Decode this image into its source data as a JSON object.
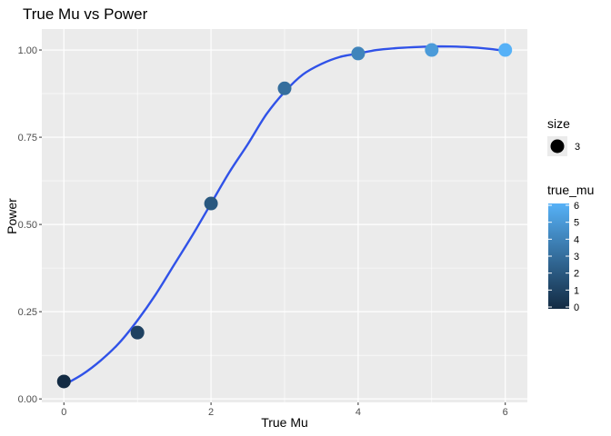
{
  "chart_data": {
    "type": "scatter",
    "title": "True Mu vs Power",
    "xlabel": "True Mu",
    "ylabel": "Power",
    "xlim": [
      -0.3,
      6.3
    ],
    "ylim": [
      -0.01,
      1.06
    ],
    "x_ticks": [
      0,
      2,
      4,
      6
    ],
    "x_tick_labels": [
      "0",
      "2",
      "4",
      "6"
    ],
    "y_ticks": [
      0,
      0.25,
      0.5,
      0.75,
      1.0
    ],
    "y_tick_labels": [
      "0.00",
      "0.25",
      "0.50",
      "0.75",
      "1.00"
    ],
    "grid": true,
    "points": [
      {
        "x": 0,
        "y": 0.05
      },
      {
        "x": 1,
        "y": 0.19
      },
      {
        "x": 2,
        "y": 0.56
      },
      {
        "x": 3,
        "y": 0.89
      },
      {
        "x": 4,
        "y": 0.99
      },
      {
        "x": 5,
        "y": 1.0
      },
      {
        "x": 6,
        "y": 1.0
      }
    ],
    "smooth": {
      "color": "#3052e8",
      "x": [
        0,
        0.25,
        0.5,
        0.75,
        1,
        1.25,
        1.5,
        1.75,
        2,
        2.25,
        2.5,
        2.75,
        3,
        3.25,
        3.5,
        3.75,
        4,
        4.25,
        4.5,
        4.75,
        5,
        5.25,
        5.5,
        5.75,
        6
      ],
      "y": [
        0.04,
        0.07,
        0.11,
        0.16,
        0.225,
        0.3,
        0.385,
        0.47,
        0.56,
        0.65,
        0.73,
        0.815,
        0.88,
        0.93,
        0.96,
        0.98,
        0.99,
        1.0,
        1.005,
        1.008,
        1.01,
        1.01,
        1.008,
        1.004,
        0.998
      ]
    },
    "legend": {
      "placement": "right",
      "size": {
        "title": "size",
        "entries": [
          {
            "label": "3",
            "color": "#000000"
          }
        ]
      },
      "color": {
        "title": "true_mu",
        "min": 0,
        "max": 6,
        "ticks": [
          "0",
          "1",
          "2",
          "3",
          "4",
          "5",
          "6"
        ],
        "low_color": "#132b43",
        "high_color": "#56b1f7"
      }
    }
  }
}
